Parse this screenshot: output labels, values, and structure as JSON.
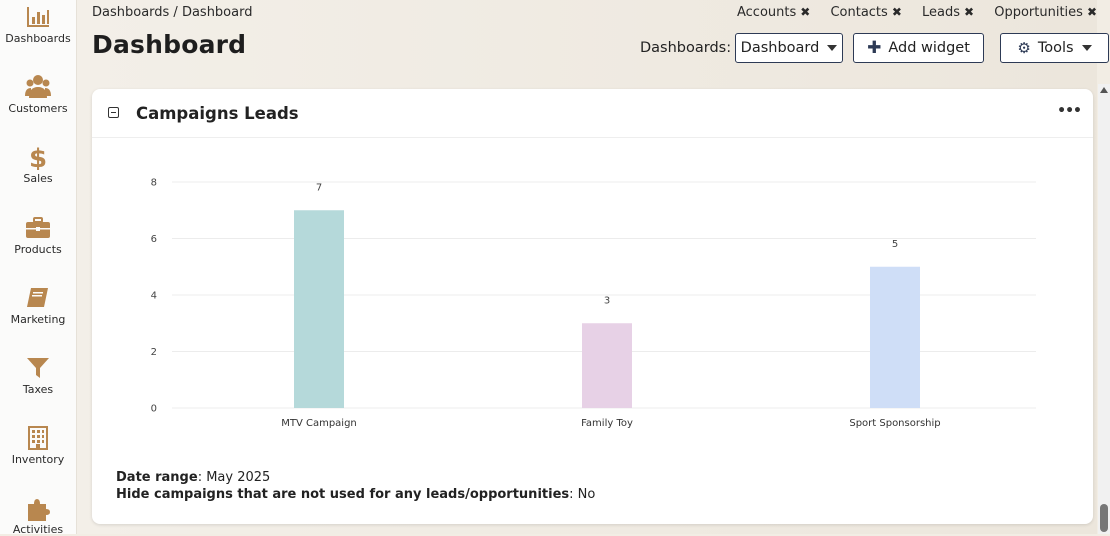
{
  "sidebar": {
    "items": [
      {
        "label": "Dashboards",
        "icon": "bar-chart-icon"
      },
      {
        "label": "Customers",
        "icon": "users-icon"
      },
      {
        "label": "Sales",
        "icon": "dollar-icon"
      },
      {
        "label": "Products",
        "icon": "briefcase-icon"
      },
      {
        "label": "Marketing",
        "icon": "book-icon"
      },
      {
        "label": "Taxes",
        "icon": "funnel-icon"
      },
      {
        "label": "Inventory",
        "icon": "building-icon"
      },
      {
        "label": "Activities",
        "icon": "puzzle-icon"
      }
    ],
    "icon_color": "#b8874f"
  },
  "header": {
    "breadcrumb": "Dashboards / Dashboard",
    "title": "Dashboard",
    "tabs": [
      "Accounts",
      "Contacts",
      "Leads",
      "Opportunities"
    ],
    "dashboards_label": "Dashboards:",
    "dashboard_select": "Dashboard",
    "add_widget": "Add widget",
    "tools": "Tools"
  },
  "widget": {
    "title": "Campaigns Leads",
    "menu": "•••",
    "date_range_label": "Date range",
    "date_range_value": ": May 2025",
    "hide_label": "Hide campaigns that are not used for any leads/opportunities",
    "hide_value": ": No"
  },
  "chart_data": {
    "type": "bar",
    "categories": [
      "MTV Campaign",
      "Family Toy",
      "Sport Sponsorship"
    ],
    "values": [
      7,
      3,
      5
    ],
    "colors": [
      "#b5d9da",
      "#e7d1e6",
      "#cfdef7"
    ],
    "ylim": [
      0,
      8
    ],
    "yticks": [
      0,
      2,
      4,
      6,
      8
    ],
    "grid": true
  }
}
